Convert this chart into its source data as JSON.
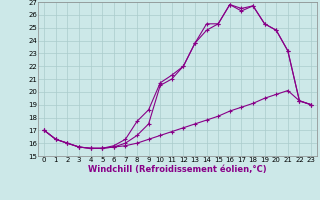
{
  "xlabel": "Windchill (Refroidissement éolien,°C)",
  "background_color": "#cce8e8",
  "grid_color": "#aacccc",
  "line_color": "#880088",
  "xlim": [
    -0.5,
    23.5
  ],
  "ylim": [
    15,
    27
  ],
  "yticks": [
    15,
    16,
    17,
    18,
    19,
    20,
    21,
    22,
    23,
    24,
    25,
    26,
    27
  ],
  "xticks": [
    0,
    1,
    2,
    3,
    4,
    5,
    6,
    7,
    8,
    9,
    10,
    11,
    12,
    13,
    14,
    15,
    16,
    17,
    18,
    19,
    20,
    21,
    22,
    23
  ],
  "series1_x": [
    0,
    1,
    2,
    3,
    4,
    5,
    6,
    7,
    8,
    9,
    10,
    11,
    12,
    13,
    14,
    15,
    16,
    17,
    18,
    19,
    20,
    21,
    22,
    23
  ],
  "series1_y": [
    17.0,
    16.3,
    16.0,
    15.7,
    15.6,
    15.6,
    15.7,
    15.8,
    16.0,
    16.3,
    16.6,
    16.9,
    17.2,
    17.5,
    17.8,
    18.1,
    18.5,
    18.8,
    19.1,
    19.5,
    19.8,
    20.1,
    19.3,
    19.0
  ],
  "series2_x": [
    0,
    1,
    2,
    3,
    4,
    5,
    6,
    7,
    8,
    9,
    10,
    11,
    12,
    13,
    14,
    15,
    16,
    17,
    18,
    19,
    20,
    21,
    22,
    23
  ],
  "series2_y": [
    17.0,
    16.3,
    16.0,
    15.7,
    15.6,
    15.6,
    15.7,
    16.0,
    16.6,
    17.5,
    20.5,
    21.0,
    22.0,
    23.8,
    24.8,
    25.3,
    26.8,
    26.3,
    26.7,
    25.3,
    24.8,
    23.2,
    19.3,
    19.0
  ],
  "series3_x": [
    0,
    1,
    2,
    3,
    4,
    5,
    6,
    7,
    8,
    9,
    10,
    11,
    12,
    13,
    14,
    15,
    16,
    17,
    18,
    19,
    20,
    21,
    22,
    23
  ],
  "series3_y": [
    17.0,
    16.3,
    16.0,
    15.7,
    15.6,
    15.6,
    15.8,
    16.3,
    17.7,
    18.6,
    20.7,
    21.3,
    22.0,
    23.8,
    25.3,
    25.3,
    26.8,
    26.5,
    26.7,
    25.3,
    24.8,
    23.2,
    19.3,
    19.0
  ]
}
